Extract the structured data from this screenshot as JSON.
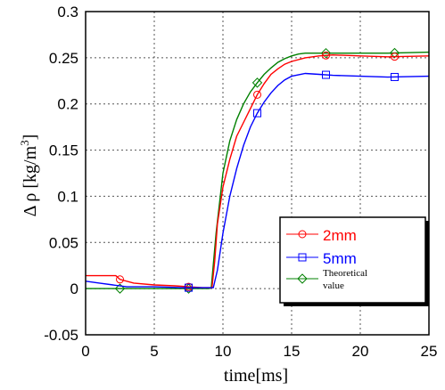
{
  "chart_data": {
    "type": "line",
    "xlabel": "time[ms]",
    "ylabel_main": "Δ ρ [kg/m",
    "ylabel_sup": "3",
    "ylabel_end": "]",
    "xlim": [
      0,
      25
    ],
    "ylim": [
      -0.05,
      0.3
    ],
    "xticks": [
      0,
      5,
      10,
      15,
      20,
      25
    ],
    "xtick_labels": [
      "0",
      "5",
      "10",
      "15",
      "20",
      "25"
    ],
    "yticks": [
      -0.05,
      0,
      0.05,
      0.1,
      0.15,
      0.2,
      0.25,
      0.3
    ],
    "ytick_labels": [
      "-0.05",
      "0",
      "0.05",
      "0.1",
      "0.15",
      "0.2",
      "0.25",
      "0.3"
    ],
    "grid": true,
    "legend_position": "lower-right",
    "series": [
      {
        "name": "2mm",
        "color": "#ff0000",
        "marker": "circle",
        "marker_x": [
          2.5,
          7.5,
          12.5,
          17.5,
          22.5
        ],
        "x": [
          0,
          2.2,
          2.5,
          3.5,
          5,
          6.5,
          7.5,
          8.5,
          9.2,
          9.4,
          9.6,
          10,
          10.5,
          11,
          11.5,
          12,
          12.5,
          13,
          13.5,
          14,
          14.5,
          15,
          16,
          17,
          18,
          20,
          22,
          25
        ],
        "y": [
          0.014,
          0.014,
          0.01,
          0.006,
          0.004,
          0.003,
          0.002,
          0.001,
          0.001,
          0.03,
          0.07,
          0.11,
          0.14,
          0.165,
          0.18,
          0.195,
          0.21,
          0.222,
          0.232,
          0.238,
          0.243,
          0.246,
          0.25,
          0.252,
          0.253,
          0.252,
          0.251,
          0.252
        ]
      },
      {
        "name": "5mm",
        "color": "#0000ff",
        "marker": "square",
        "marker_x": [
          7.5,
          12.5,
          17.5,
          22.5
        ],
        "x": [
          0,
          1,
          2,
          3,
          5,
          7,
          8.5,
          9.3,
          9.6,
          10,
          10.5,
          11,
          11.5,
          12,
          12.5,
          13,
          13.5,
          14,
          14.5,
          15,
          16,
          17,
          18,
          20,
          22,
          25
        ],
        "y": [
          0.008,
          0.006,
          0.004,
          0.002,
          0.002,
          0.001,
          0.001,
          0.001,
          0.02,
          0.06,
          0.1,
          0.13,
          0.155,
          0.175,
          0.19,
          0.202,
          0.212,
          0.22,
          0.226,
          0.23,
          0.233,
          0.232,
          0.231,
          0.23,
          0.229,
          0.23
        ]
      },
      {
        "name": "Theoretical value",
        "label_lines": [
          "Theoretical",
          "value"
        ],
        "color": "#008000",
        "marker": "diamond",
        "marker_x": [
          2.5,
          7.5,
          12.5,
          17.5,
          22.5
        ],
        "x": [
          0,
          2,
          4,
          6,
          8,
          9,
          9.15,
          9.5,
          10,
          10.5,
          11,
          11.5,
          12,
          12.5,
          13,
          13.5,
          14,
          14.5,
          15,
          15.5,
          16,
          17,
          18,
          20,
          22,
          25
        ],
        "y": [
          0,
          0,
          0,
          0,
          0,
          0,
          0.001,
          0.06,
          0.125,
          0.16,
          0.183,
          0.2,
          0.213,
          0.223,
          0.232,
          0.239,
          0.245,
          0.249,
          0.252,
          0.254,
          0.255,
          0.255,
          0.255,
          0.255,
          0.255,
          0.256
        ]
      }
    ]
  }
}
